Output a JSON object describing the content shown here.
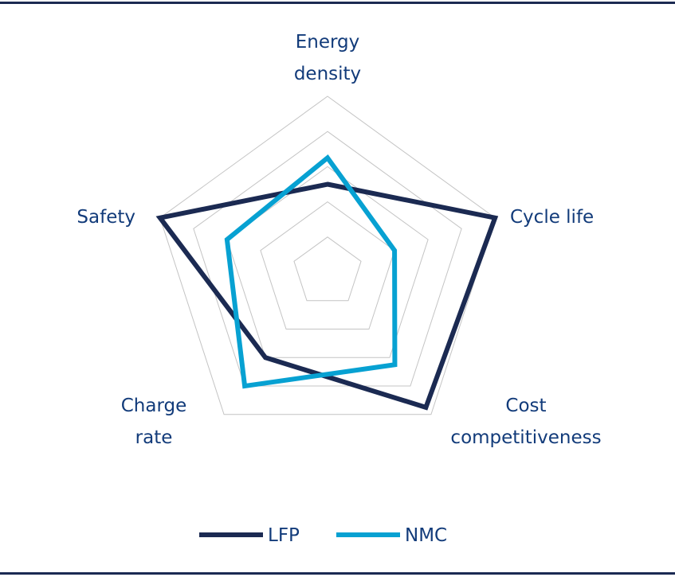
{
  "chart_data": {
    "type": "radar",
    "axes": [
      "Energy density",
      "Cycle life",
      "Cost competitiveness",
      "Charge rate",
      "Safety"
    ],
    "axis_label_lines": [
      [
        "Energy",
        "density"
      ],
      [
        "Cycle life"
      ],
      [
        "Cost",
        "competitiveness"
      ],
      [
        "Charge",
        "rate"
      ],
      [
        "Safety"
      ]
    ],
    "rlim": [
      0,
      5
    ],
    "grid_levels": [
      1,
      2,
      3,
      4,
      5
    ],
    "series": [
      {
        "name": "LFP",
        "color": "#1b2a52",
        "values": [
          2.5,
          5,
          4.75,
          3,
          5
        ]
      },
      {
        "name": "NMC",
        "color": "#07a1d2",
        "values": [
          3.25,
          2,
          3.25,
          4,
          3
        ]
      }
    ],
    "legend_position": "bottom"
  },
  "colors": {
    "rule": "#1b2a52",
    "text": "#123b7a",
    "grid": "#c4c4c4"
  }
}
